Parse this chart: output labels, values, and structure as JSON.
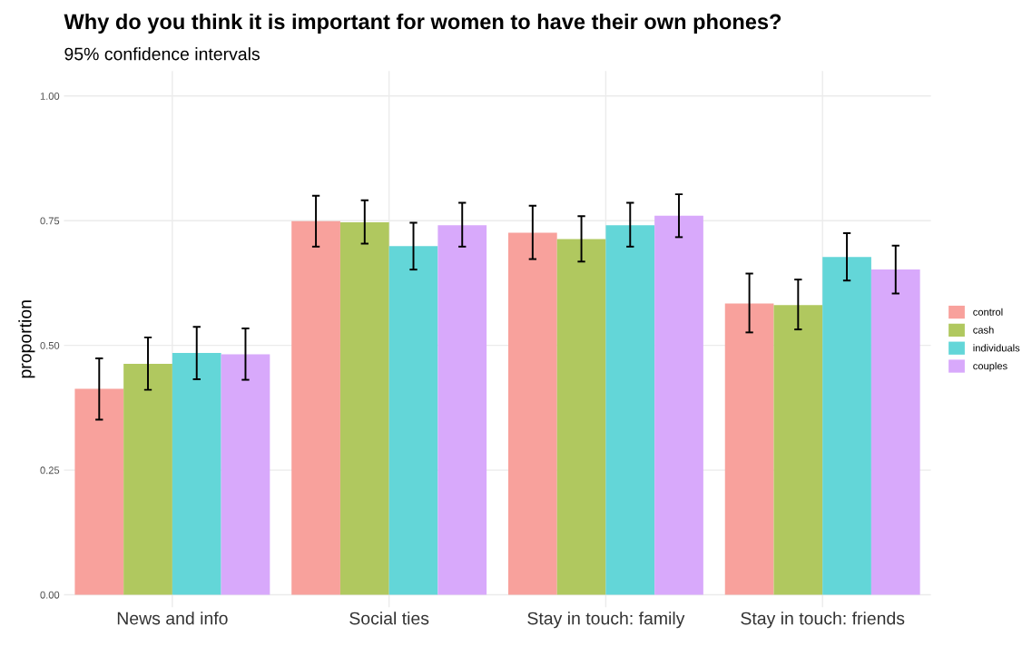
{
  "chart_data": {
    "type": "bar",
    "title": "Why do you think it is important for women to have their own phones?",
    "subtitle": "95% confidence intervals",
    "ylabel": "proportion",
    "categories": [
      "News and info",
      "Social ties",
      "Stay in touch: family",
      "Stay in touch: friends"
    ],
    "series": [
      {
        "name": "control",
        "color": "#f8a19c",
        "values": [
          0.413,
          0.749,
          0.726,
          0.584
        ],
        "errors": [
          [
            0.351,
            0.474
          ],
          [
            0.698,
            0.8
          ],
          [
            0.673,
            0.78
          ],
          [
            0.526,
            0.644
          ]
        ]
      },
      {
        "name": "cash",
        "color": "#b0c85f",
        "values": [
          0.463,
          0.747,
          0.713,
          0.581
        ],
        "errors": [
          [
            0.411,
            0.516
          ],
          [
            0.704,
            0.791
          ],
          [
            0.668,
            0.759
          ],
          [
            0.532,
            0.632
          ]
        ]
      },
      {
        "name": "individuals",
        "color": "#63d6d8",
        "values": [
          0.485,
          0.699,
          0.741,
          0.677
        ],
        "errors": [
          [
            0.432,
            0.537
          ],
          [
            0.652,
            0.746
          ],
          [
            0.698,
            0.786
          ],
          [
            0.63,
            0.725
          ]
        ]
      },
      {
        "name": "couples",
        "color": "#d8a9fb",
        "values": [
          0.482,
          0.741,
          0.76,
          0.652
        ],
        "errors": [
          [
            0.431,
            0.534
          ],
          [
            0.698,
            0.786
          ],
          [
            0.717,
            0.803
          ],
          [
            0.604,
            0.7
          ]
        ]
      }
    ],
    "ylim": [
      -0.025,
      1.05
    ],
    "yticks": [
      {
        "value": 0,
        "label": "0.00"
      },
      {
        "value": 0.25,
        "label": "0.25"
      },
      {
        "value": 0.5,
        "label": "0.50"
      },
      {
        "value": 0.75,
        "label": "0.75"
      },
      {
        "value": 1,
        "label": "1.00"
      }
    ],
    "grid": true,
    "legend": "right"
  }
}
